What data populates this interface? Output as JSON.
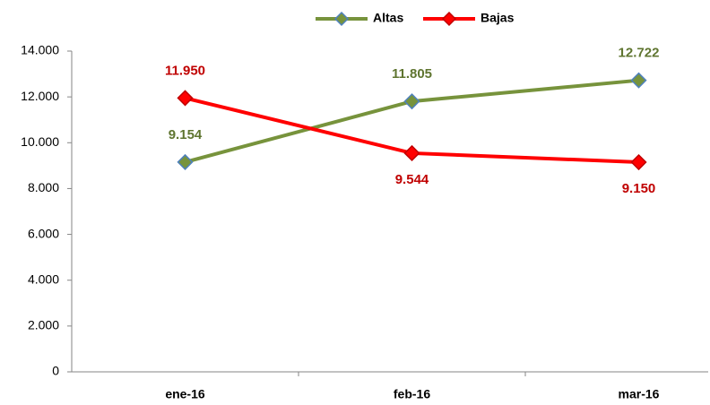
{
  "chart_data": {
    "type": "line",
    "categories": [
      "ene-16",
      "feb-16",
      "mar-16"
    ],
    "series": [
      {
        "name": "Altas",
        "color": "#77933c",
        "label_color": "#5f7530",
        "values": [
          9154,
          11805,
          12722
        ],
        "value_labels": [
          "9.154",
          "11.805",
          "12.722"
        ]
      },
      {
        "name": "Bajas",
        "color": "#ff0000",
        "label_color": "#c00000",
        "values": [
          11950,
          9544,
          9150
        ],
        "value_labels": [
          "11.950",
          "9.544",
          "9.150"
        ]
      }
    ],
    "ylim": [
      0,
      14000
    ],
    "yticks": [
      0,
      {
        "value": 2000,
        "label": "2.000"
      },
      {
        "value": 4000,
        "label": "4.000"
      },
      {
        "value": 6000,
        "label": "6.000"
      },
      {
        "value": 8000,
        "label": "8.000"
      },
      {
        "value": 10000,
        "label": "10.000"
      },
      {
        "value": 12000,
        "label": "12.000"
      },
      {
        "value": 14000,
        "label": "14.000"
      }
    ],
    "legend": "top"
  }
}
